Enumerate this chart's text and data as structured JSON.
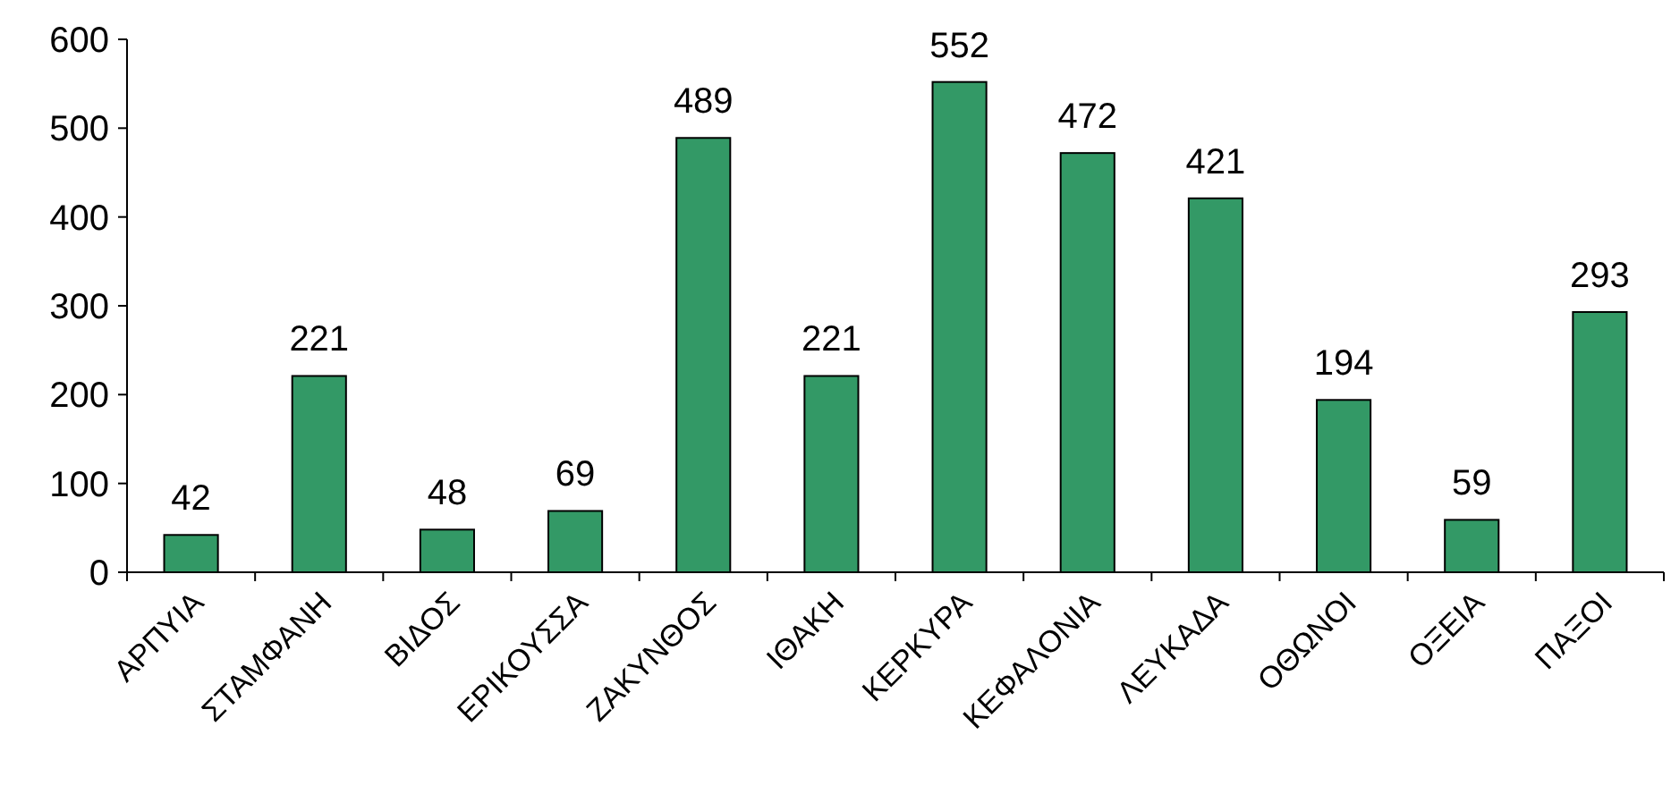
{
  "chart_data": {
    "type": "bar",
    "categories": [
      "ΑΡΠΥΙΑ",
      "ΣΤΑΜΦΑΝΗ",
      "ΒΙΔΟΣ",
      "ΕΡΙΚΟΥΣΣΑ",
      "ΖΑΚΥΝΘΟΣ",
      "ΙΘΑΚΗ",
      "ΚΕΡΚΥΡΑ",
      "ΚΕΦΑΛΟΝΙΑ",
      "ΛΕΥΚΑΔΑ",
      "ΟΘΩΝΟΙ",
      "ΟΞΕΙΑ",
      "ΠΑΞΟΙ"
    ],
    "values": [
      42,
      221,
      48,
      69,
      489,
      221,
      552,
      472,
      421,
      194,
      59,
      293
    ],
    "color": "#339966",
    "ylim": [
      0,
      600
    ],
    "yticks": [
      0,
      100,
      200,
      300,
      400,
      500,
      600
    ],
    "data_labels": true
  }
}
